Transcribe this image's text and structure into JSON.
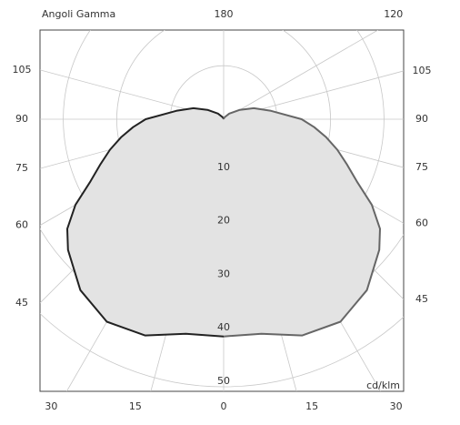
{
  "chart_data": {
    "type": "polar",
    "title": "Angoli Gamma",
    "unit_label": "cd/klm",
    "x": [
      0,
      10,
      20,
      30,
      40,
      50,
      55,
      60,
      65,
      70,
      75,
      80,
      85,
      90,
      100,
      110,
      120,
      135,
      150,
      165,
      180
    ],
    "series": [
      {
        "color": "#222222",
        "values": [
          40.6,
          40.7,
          43,
          43.7,
          41.7,
          38,
          35.7,
          32,
          27.5,
          24.5,
          22,
          19.5,
          17,
          14.6,
          9,
          6,
          3.5,
          1.5,
          0.5,
          0.2,
          0
        ]
      },
      {
        "color": "#666666",
        "values": [
          40.6,
          40.7,
          43,
          43.7,
          41.7,
          38,
          35.7,
          32,
          27.5,
          24.5,
          22,
          19.5,
          17,
          14.6,
          9,
          6,
          3.5,
          1.5,
          0.5,
          0.2,
          0
        ]
      }
    ],
    "fill": "#e3e3e3",
    "rlim": [
      0,
      50
    ],
    "rticks": [
      10,
      20,
      30,
      40,
      50
    ],
    "theta_ticks_left": [
      15,
      30,
      45,
      60,
      75,
      90,
      105
    ],
    "theta_ticks_right": [
      15,
      30,
      45,
      60,
      75,
      90,
      105,
      120
    ],
    "theta_ticks_center": [
      0,
      180
    ]
  }
}
